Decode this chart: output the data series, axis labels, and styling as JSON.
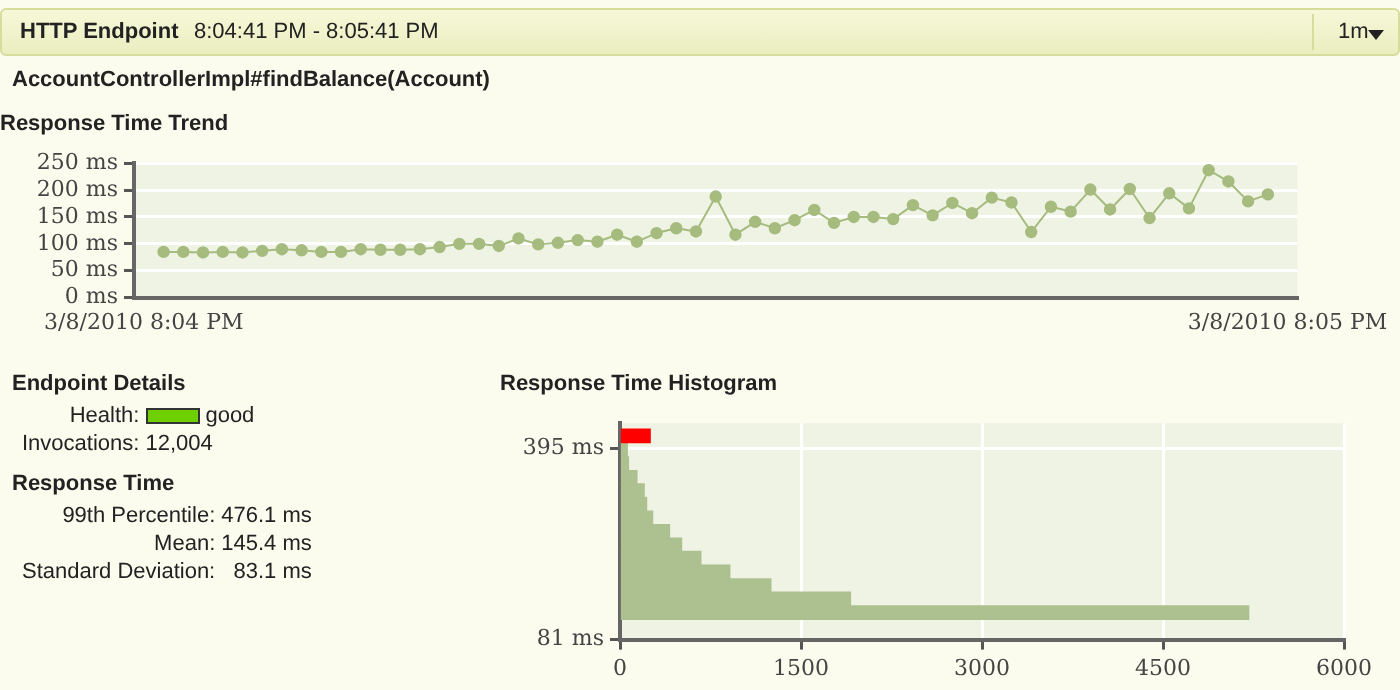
{
  "chart_data": [
    {
      "type": "other",
      "title": "HTTP Endpoint",
      "subtitle": "8:04:41 PM - 8:05:41 PM",
      "annotations": [
        "AccountControllerImpl#findBalance(Account)",
        "1m"
      ]
    },
    {
      "type": "line",
      "title": "Response Time Trend",
      "categories": [
        "3/8/2010 8:04 PM",
        null,
        null,
        null,
        null,
        null,
        null,
        null,
        null,
        null,
        null,
        null,
        null,
        null,
        null,
        null,
        null,
        null,
        null,
        null,
        null,
        null,
        null,
        null,
        null,
        null,
        null,
        null,
        null,
        null,
        null,
        null,
        null,
        null,
        null,
        null,
        null,
        null,
        null,
        null,
        null,
        null,
        null,
        null,
        null,
        null,
        null,
        null,
        null,
        null,
        null,
        null,
        null,
        null,
        null,
        null,
        null,
        null,
        "3/8/2010 8:05 PM"
      ],
      "series": [
        {
          "color": "#a6bb7e",
          "values": [
            null,
            85,
            85,
            84,
            85,
            84,
            87,
            90,
            88,
            85,
            85,
            90,
            89,
            89,
            90,
            94,
            100,
            100,
            96,
            110,
            99,
            102,
            107,
            104,
            117,
            104,
            120,
            129,
            123,
            188,
            117,
            141,
            129,
            144,
            163,
            139,
            150,
            150,
            146,
            172,
            153,
            176,
            157,
            186,
            177,
            122,
            169,
            160,
            201,
            164,
            202,
            148,
            194,
            166,
            237,
            216,
            179,
            192,
            null
          ]
        }
      ],
      "ylim": [
        0,
        250
      ],
      "yticks": [
        {
          "value": 0,
          "label": "0 ms"
        },
        {
          "value": 50,
          "label": "50 ms"
        },
        {
          "value": 100,
          "label": "100 ms"
        },
        {
          "value": 150,
          "label": "150 ms"
        },
        {
          "value": 200,
          "label": "200 ms"
        },
        {
          "value": 250,
          "label": "250 ms"
        }
      ],
      "grid": "y",
      "marker": "circle"
    },
    {
      "type": "other",
      "title": "Endpoint Details",
      "annotations": [
        "Health:",
        "good",
        "Invocations:",
        "12,004"
      ]
    },
    {
      "type": "other",
      "title": "Response Time",
      "annotations": [
        "99th Percentile:",
        "476.1 ms",
        "Mean:",
        "145.4 ms",
        "Standard Deviation:",
        "83.1 ms"
      ]
    },
    {
      "type": "histogram",
      "title": "Response Time Histogram",
      "orientation": "horizontal",
      "bins": [
        114,
        137,
        159,
        181,
        204,
        226,
        248,
        270,
        293,
        315,
        337,
        359,
        382,
        404,
        428
      ],
      "values": [
        5210,
        1910,
        1250,
        910,
        670,
        510,
        410,
        270,
        220,
        200,
        140,
        70,
        60,
        250
      ],
      "colors": [
        "#adc08f",
        "#adc08f",
        "#adc08f",
        "#adc08f",
        "#adc08f",
        "#adc08f",
        "#adc08f",
        "#adc08f",
        "#adc08f",
        "#adc08f",
        "#adc08f",
        "#adc08f",
        "#adc08f",
        "#ff0000"
      ],
      "xlim": [
        0,
        6000
      ],
      "xticks": [
        0,
        1500,
        3000,
        4500,
        6000
      ],
      "ylim": [
        81,
        437
      ],
      "yticks": [
        {
          "value": 81,
          "label": "81 ms"
        },
        {
          "value": 395,
          "label": "395 ms"
        }
      ],
      "grid": true
    }
  ]
}
